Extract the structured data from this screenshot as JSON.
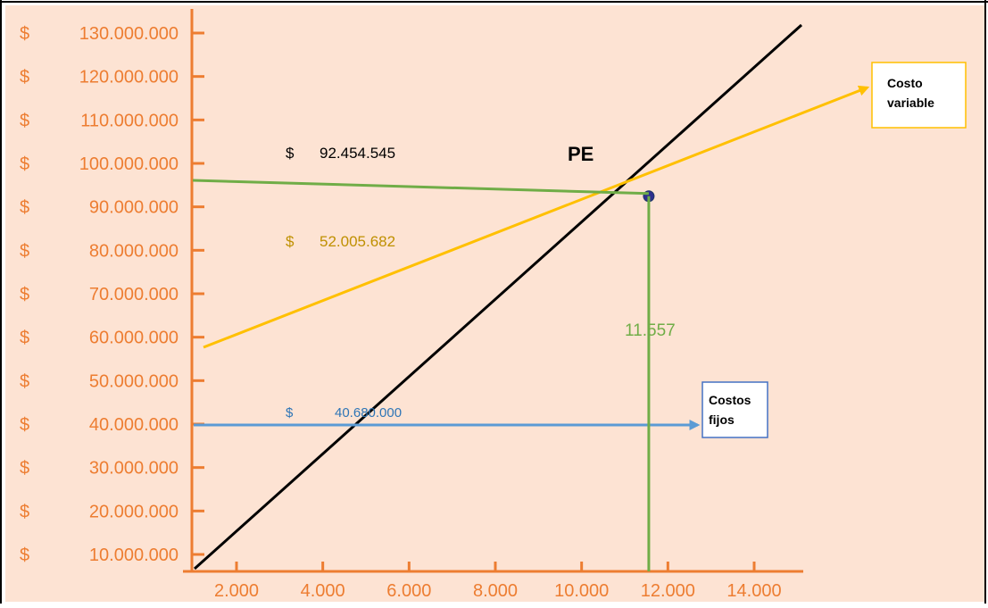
{
  "chart_data": {
    "type": "line",
    "background_color": "#fde3d3",
    "axis_color": "#ed7d31",
    "currency_symbol": "$",
    "y_ticks": [
      {
        "value": 130000000,
        "label": "130.000.000"
      },
      {
        "value": 120000000,
        "label": "120.000.000"
      },
      {
        "value": 110000000,
        "label": "110.000.000"
      },
      {
        "value": 100000000,
        "label": "100.000.000"
      },
      {
        "value": 90000000,
        "label": "90.000.000"
      },
      {
        "value": 80000000,
        "label": "80.000.000"
      },
      {
        "value": 70000000,
        "label": "70.000.000"
      },
      {
        "value": 60000000,
        "label": "60.000.000"
      },
      {
        "value": 50000000,
        "label": "50.000.000"
      },
      {
        "value": 40000000,
        "label": "40.000.000"
      },
      {
        "value": 30000000,
        "label": "30.000.000"
      },
      {
        "value": 20000000,
        "label": "20.000.000"
      },
      {
        "value": 10000000,
        "label": "10.000.000"
      }
    ],
    "x_ticks": [
      {
        "value": 2000,
        "label": "2.000"
      },
      {
        "value": 4000,
        "label": "4.000"
      },
      {
        "value": 6000,
        "label": "6.000"
      },
      {
        "value": 8000,
        "label": "8.000"
      },
      {
        "value": 10000,
        "label": "10.000"
      },
      {
        "value": 12000,
        "label": "12.000"
      },
      {
        "value": 14000,
        "label": "14.000"
      }
    ],
    "series": [
      {
        "key": "ingresos",
        "color": "#000000",
        "x": [
          1000,
          14900
        ],
        "y": [
          0,
          132000000
        ]
      },
      {
        "key": "costo_variable",
        "name": "Costo variable",
        "color": "#ffc000",
        "x": [
          1000,
          16800
        ],
        "y": [
          56000000,
          128000000
        ]
      },
      {
        "key": "costos_fijos",
        "name": "Costos fijos",
        "color": "#5b9bd5",
        "x": [
          1000,
          12000
        ],
        "y": [
          40680000,
          40680000
        ]
      }
    ],
    "break_even": {
      "label": "PE",
      "x": 11557,
      "y": 92454545,
      "x_label": "11.557",
      "y_label": "92.454.545",
      "color": "#70ad47"
    },
    "annotations": [
      {
        "key": "ingreso_pe",
        "symbol": "$",
        "text": "92.454.545",
        "color": "#000000"
      },
      {
        "key": "costo_var_pe",
        "symbol": "$",
        "text": "52.005.682",
        "color": "#bf9000"
      },
      {
        "key": "costos_fijos_val",
        "symbol": "$",
        "text": "40.680.000",
        "color": "#2e75b6"
      }
    ],
    "legend_boxes": [
      {
        "key": "costo_variable",
        "text": [
          "Costo",
          "variable"
        ],
        "border": "#ffc000"
      },
      {
        "key": "costos_fijos",
        "text": [
          "Costos",
          "fijos"
        ],
        "border": "#4472c4"
      }
    ]
  }
}
